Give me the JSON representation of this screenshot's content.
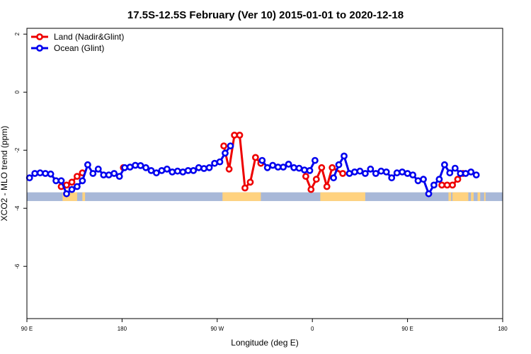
{
  "chart_data": {
    "type": "line",
    "title": "17.5S-12.5S February (Ver 10)   2015-01-01 to 2020-12-18",
    "xlabel": "Longitude (deg E)",
    "ylabel": "XCO2 - MLO trend (ppm)",
    "xlim": [
      90,
      450
    ],
    "ylim": [
      -7.8,
      2.2
    ],
    "x_ticks": [
      {
        "value": 90,
        "label": "90 E"
      },
      {
        "value": 162,
        "label": "180"
      },
      {
        "value": 234,
        "label": "90 W"
      },
      {
        "value": 306,
        "label": "0"
      },
      {
        "value": 378,
        "label": "90 E"
      },
      {
        "value": 450,
        "label": "180"
      }
    ],
    "y_ticks": [
      2,
      0,
      -2,
      -4,
      -6
    ],
    "grid": false,
    "legend_position": "top-left",
    "series": [
      {
        "name": "Land (Nadir&Glint)",
        "color": "#ee0000",
        "segments": [
          [
            [
              116,
              -3.25
            ],
            [
              120,
              -3.2
            ],
            [
              124,
              -3.1
            ],
            [
              128,
              -2.9
            ],
            [
              132,
              -2.78
            ]
          ],
          [
            [
              163,
              -2.6
            ]
          ],
          [
            [
              239,
              -1.85
            ],
            [
              243,
              -2.65
            ],
            [
              247,
              -1.48
            ],
            [
              251,
              -1.48
            ],
            [
              255,
              -3.3
            ],
            [
              259,
              -3.1
            ],
            [
              263,
              -2.25
            ],
            [
              267,
              -2.45
            ]
          ],
          [
            [
              301,
              -2.9
            ],
            [
              305,
              -3.35
            ],
            [
              309,
              -3.0
            ],
            [
              313,
              -2.6
            ],
            [
              317,
              -3.25
            ],
            [
              321,
              -2.6
            ],
            [
              329,
              -2.8
            ]
          ],
          [
            [
              404,
              -3.2
            ],
            [
              408,
              -3.2
            ],
            [
              412,
              -3.2
            ],
            [
              416,
              -3.0
            ],
            [
              420,
              -2.8
            ]
          ]
        ]
      },
      {
        "name": "Ocean (Glint)",
        "color": "#0000ee",
        "segments": [
          [
            [
              92,
              -2.95
            ],
            [
              96,
              -2.8
            ],
            [
              100,
              -2.78
            ],
            [
              104,
              -2.8
            ],
            [
              108,
              -2.82
            ],
            [
              112,
              -3.05
            ],
            [
              116,
              -3.05
            ],
            [
              120,
              -3.5
            ],
            [
              124,
              -3.35
            ],
            [
              128,
              -3.25
            ],
            [
              132,
              -3.05
            ],
            [
              136,
              -2.5
            ],
            [
              140,
              -2.8
            ],
            [
              144,
              -2.65
            ],
            [
              148,
              -2.85
            ],
            [
              152,
              -2.85
            ],
            [
              156,
              -2.8
            ],
            [
              160,
              -2.9
            ],
            [
              164,
              -2.6
            ],
            [
              168,
              -2.58
            ],
            [
              172,
              -2.52
            ],
            [
              176,
              -2.53
            ],
            [
              180,
              -2.6
            ],
            [
              184,
              -2.7
            ],
            [
              188,
              -2.78
            ],
            [
              192,
              -2.7
            ],
            [
              196,
              -2.65
            ],
            [
              200,
              -2.75
            ],
            [
              204,
              -2.72
            ],
            [
              208,
              -2.75
            ],
            [
              212,
              -2.7
            ],
            [
              216,
              -2.7
            ],
            [
              220,
              -2.6
            ],
            [
              224,
              -2.63
            ],
            [
              228,
              -2.6
            ],
            [
              232,
              -2.45
            ],
            [
              236,
              -2.4
            ],
            [
              240,
              -2.1
            ],
            [
              244,
              -1.85
            ]
          ],
          [
            [
              268,
              -2.35
            ],
            [
              272,
              -2.6
            ],
            [
              276,
              -2.52
            ],
            [
              280,
              -2.58
            ],
            [
              284,
              -2.58
            ],
            [
              288,
              -2.48
            ],
            [
              292,
              -2.6
            ],
            [
              296,
              -2.62
            ],
            [
              300,
              -2.68
            ],
            [
              304,
              -2.7
            ],
            [
              308,
              -2.35
            ]
          ],
          [
            [
              322,
              -2.95
            ],
            [
              326,
              -2.5
            ],
            [
              330,
              -2.2
            ],
            [
              334,
              -2.8
            ],
            [
              338,
              -2.75
            ],
            [
              342,
              -2.72
            ],
            [
              346,
              -2.8
            ],
            [
              350,
              -2.65
            ],
            [
              354,
              -2.8
            ],
            [
              358,
              -2.72
            ],
            [
              362,
              -2.75
            ],
            [
              366,
              -2.95
            ],
            [
              370,
              -2.78
            ],
            [
              374,
              -2.75
            ],
            [
              378,
              -2.8
            ],
            [
              382,
              -2.85
            ],
            [
              386,
              -3.05
            ],
            [
              390,
              -3.0
            ],
            [
              394,
              -3.5
            ],
            [
              398,
              -3.2
            ],
            [
              402,
              -3.0
            ],
            [
              406,
              -2.5
            ],
            [
              410,
              -2.78
            ],
            [
              414,
              -2.62
            ],
            [
              418,
              -2.8
            ],
            [
              422,
              -2.8
            ],
            [
              426,
              -2.75
            ],
            [
              430,
              -2.85
            ]
          ]
        ]
      }
    ],
    "surface_strip": {
      "y_range": [
        -3.75,
        -3.45
      ],
      "ocean_color": "#a8b8d8",
      "land_color": "#ffd27f",
      "land_intervals": [
        [
          117,
          128
        ],
        [
          132,
          134
        ],
        [
          238,
          267
        ],
        [
          312,
          346
        ],
        [
          412,
          424
        ],
        [
          426,
          428
        ],
        [
          431,
          433
        ],
        [
          436,
          437
        ],
        [
          409,
          411
        ]
      ]
    }
  }
}
